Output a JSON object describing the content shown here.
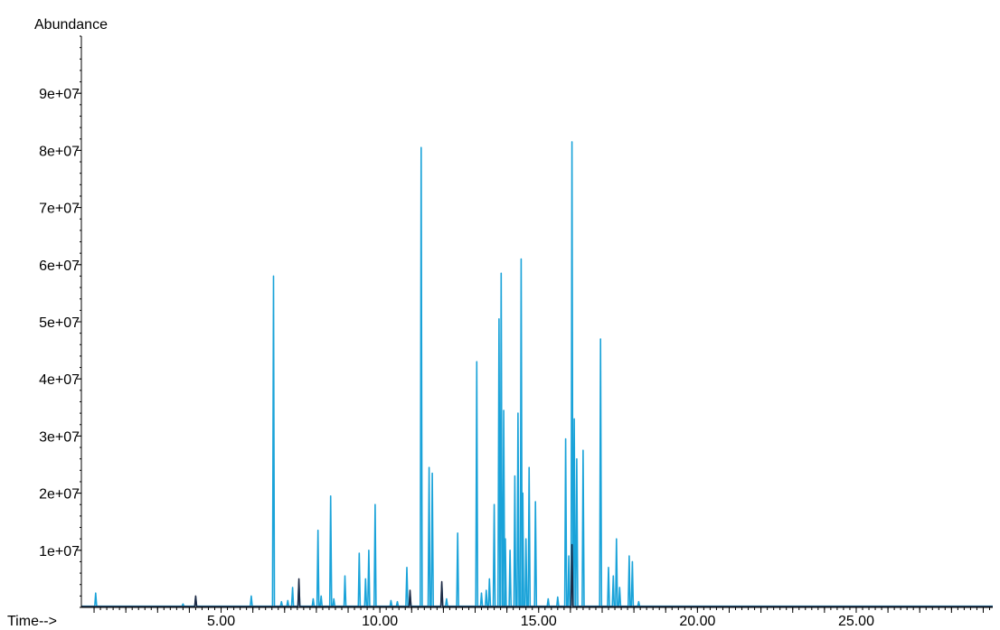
{
  "chart_data": {
    "type": "line",
    "title": "",
    "ylabel": "Abundance",
    "xlabel": "Time-->",
    "xlim": [
      0.6,
      29.3
    ],
    "ylim": [
      0,
      100000000
    ],
    "x_ticks": [
      5,
      10,
      15,
      20,
      25
    ],
    "x_tick_labels": [
      "5.00",
      "10.00",
      "15.00",
      "20.00",
      "25.00"
    ],
    "y_ticks": [
      10000000,
      20000000,
      30000000,
      40000000,
      50000000,
      60000000,
      70000000,
      80000000,
      90000000
    ],
    "y_tick_labels": [
      "1e+07",
      "2e+07",
      "3e+07",
      "4e+07",
      "5e+07",
      "6e+07",
      "7e+07",
      "8e+07",
      "9e+07"
    ],
    "grid": false,
    "legend": "none",
    "series": [
      {
        "color": "#1aa3d9",
        "baseline": 200000,
        "peaks": [
          [
            1.05,
            2500000
          ],
          [
            3.8,
            600000
          ],
          [
            4.2,
            1800000
          ],
          [
            5.95,
            2000000
          ],
          [
            6.65,
            58000000
          ],
          [
            6.9,
            1000000
          ],
          [
            7.1,
            1200000
          ],
          [
            7.25,
            3500000
          ],
          [
            7.45,
            4500000
          ],
          [
            7.9,
            1500000
          ],
          [
            8.05,
            13500000
          ],
          [
            8.15,
            2000000
          ],
          [
            8.45,
            19500000
          ],
          [
            8.55,
            1500000
          ],
          [
            8.9,
            5500000
          ],
          [
            9.35,
            9500000
          ],
          [
            9.55,
            5000000
          ],
          [
            9.65,
            10000000
          ],
          [
            9.85,
            18000000
          ],
          [
            10.35,
            1200000
          ],
          [
            10.55,
            1000000
          ],
          [
            10.85,
            7000000
          ],
          [
            10.95,
            2500000
          ],
          [
            11.3,
            80500000
          ],
          [
            11.55,
            24500000
          ],
          [
            11.65,
            23500000
          ],
          [
            11.95,
            4000000
          ],
          [
            12.1,
            1500000
          ],
          [
            12.45,
            13000000
          ],
          [
            13.05,
            43000000
          ],
          [
            13.2,
            2500000
          ],
          [
            13.35,
            3000000
          ],
          [
            13.45,
            5000000
          ],
          [
            13.6,
            18000000
          ],
          [
            13.75,
            50500000
          ],
          [
            13.82,
            58500000
          ],
          [
            13.9,
            34500000
          ],
          [
            13.95,
            12000000
          ],
          [
            14.1,
            10000000
          ],
          [
            14.25,
            23000000
          ],
          [
            14.35,
            34000000
          ],
          [
            14.45,
            61000000
          ],
          [
            14.5,
            20000000
          ],
          [
            14.6,
            12000000
          ],
          [
            14.7,
            24500000
          ],
          [
            14.9,
            18500000
          ],
          [
            15.3,
            1500000
          ],
          [
            15.6,
            1800000
          ],
          [
            15.85,
            29500000
          ],
          [
            15.95,
            9000000
          ],
          [
            16.05,
            81500000
          ],
          [
            16.12,
            33000000
          ],
          [
            16.2,
            26000000
          ],
          [
            16.4,
            27500000
          ],
          [
            16.95,
            47000000
          ],
          [
            17.2,
            7000000
          ],
          [
            17.35,
            5500000
          ],
          [
            17.45,
            12000000
          ],
          [
            17.55,
            3500000
          ],
          [
            17.85,
            9000000
          ],
          [
            17.95,
            8000000
          ],
          [
            18.15,
            1000000
          ]
        ]
      },
      {
        "color": "#1f2a44",
        "baseline": 150000,
        "peaks": [
          [
            4.2,
            2000000
          ],
          [
            7.45,
            5000000
          ],
          [
            10.95,
            3000000
          ],
          [
            11.95,
            4500000
          ],
          [
            16.05,
            11000000
          ]
        ]
      }
    ]
  }
}
